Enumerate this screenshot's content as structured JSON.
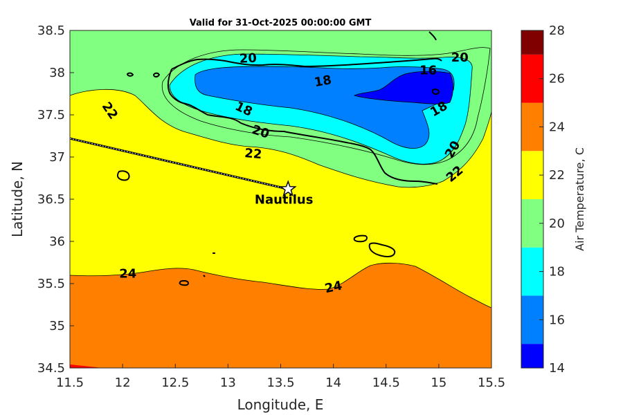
{
  "chart_data": {
    "type": "contour",
    "title": "Valid for 31-Oct-2025 00:00:00 GMT",
    "xlabel": "Longitude, E",
    "ylabel": "Latitude, N",
    "xlim": [
      11.5,
      15.5
    ],
    "ylim": [
      34.5,
      38.5
    ],
    "xticks": [
      "11.5",
      "12",
      "12.5",
      "13",
      "13.5",
      "14",
      "14.5",
      "15",
      "15.5"
    ],
    "yticks": [
      "34.5",
      "35",
      "35.5",
      "36",
      "36.5",
      "37",
      "37.5",
      "38",
      "38.5"
    ],
    "colorbar": {
      "label": "Air Temperature, C",
      "ticks": [
        "14",
        "16",
        "18",
        "20",
        "22",
        "24",
        "26",
        "28"
      ],
      "levels": [
        {
          "from": 14,
          "to": 15,
          "color": "#0000ff"
        },
        {
          "from": 15,
          "to": 17,
          "color": "#0080ff"
        },
        {
          "from": 17,
          "to": 19,
          "color": "#00ffff"
        },
        {
          "from": 19,
          "to": 21,
          "color": "#80ff80"
        },
        {
          "from": 21,
          "to": 23,
          "color": "#ffff00"
        },
        {
          "from": 23,
          "to": 25,
          "color": "#ff8000"
        },
        {
          "from": 25,
          "to": 27,
          "color": "#ff0000"
        },
        {
          "from": 27,
          "to": 28,
          "color": "#800000"
        }
      ]
    },
    "contour_labels": [
      {
        "text": "20",
        "lon": 13.19,
        "lat": 38.17,
        "angle": -3
      },
      {
        "text": "20",
        "lon": 15.2,
        "lat": 38.18,
        "angle": 0
      },
      {
        "text": "16",
        "lon": 14.9,
        "lat": 38.03,
        "angle": 0
      },
      {
        "text": "18",
        "lon": 13.9,
        "lat": 37.9,
        "angle": -10
      },
      {
        "text": "22",
        "lon": 11.88,
        "lat": 37.55,
        "angle": 55
      },
      {
        "text": "18",
        "lon": 13.15,
        "lat": 37.57,
        "angle": 25
      },
      {
        "text": "18",
        "lon": 15.0,
        "lat": 37.57,
        "angle": -30
      },
      {
        "text": "20",
        "lon": 13.31,
        "lat": 37.3,
        "angle": 18
      },
      {
        "text": "20",
        "lon": 15.13,
        "lat": 37.09,
        "angle": -60
      },
      {
        "text": "22",
        "lon": 13.24,
        "lat": 37.04,
        "angle": 5
      },
      {
        "text": "22",
        "lon": 15.15,
        "lat": 36.8,
        "angle": -40
      },
      {
        "text": "24",
        "lon": 12.05,
        "lat": 35.62,
        "angle": 0
      },
      {
        "text": "24",
        "lon": 14.0,
        "lat": 35.46,
        "angle": -12
      }
    ],
    "station": {
      "name": "Nautilus",
      "lon": 13.57,
      "lat": 36.62
    },
    "track_start": {
      "lon": 11.5,
      "lat": 37.22
    }
  }
}
